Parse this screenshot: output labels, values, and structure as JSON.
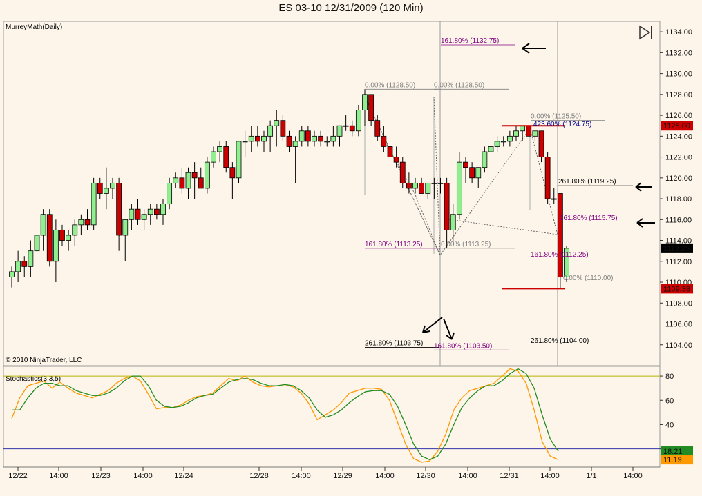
{
  "title": "ES 03-10  12/31/2009 (120 Min)",
  "price_panel": {
    "indicator_label": "MurreyMath(Daily)",
    "copyright": "© 2010 NinjaTrader, LLC",
    "badges": [
      {
        "text": "1125.00",
        "value": 1125.0,
        "bg": "#cc0000",
        "fg": "#ffffff"
      },
      {
        "text": "1113.25",
        "value": 1113.25,
        "bg": "#000000",
        "fg": "#ffffff"
      },
      {
        "text": "1109.38",
        "value": 1109.38,
        "bg": "#cc0000",
        "fg": "#ffffff"
      }
    ]
  },
  "stoch_panel": {
    "indicator_label": "Stochastics(3,3,5)",
    "badges": [
      {
        "text": "18.21",
        "value": 18.21,
        "bg": "#228b22",
        "fg": "#ffffff"
      },
      {
        "text": "11.19",
        "value": 11.19,
        "bg": "#ff9900",
        "fg": "#000000"
      }
    ]
  },
  "chart_data": {
    "type": "candlestick",
    "price_axis": {
      "min": 1102,
      "max": 1135,
      "ticks": [
        "1104.00",
        "1106.00",
        "1108.00",
        "1110.00",
        "1112.00",
        "1114.00",
        "1116.00",
        "1118.00",
        "1120.00",
        "1122.00",
        "1124.00",
        "1126.00",
        "1128.00",
        "1130.00",
        "1132.00",
        "1134.00"
      ]
    },
    "time_axis_labels": [
      "12/22",
      "14:00",
      "12/23",
      "14:00",
      "12/24",
      "12/28",
      "14:00",
      "12/29",
      "14:00",
      "12/30",
      "14:00",
      "12/31",
      "14:00",
      "1/1",
      "14:00"
    ],
    "candles": [
      {
        "o": 1110.5,
        "h": 1111.5,
        "l": 1109.5,
        "c": 1111.0
      },
      {
        "o": 1111.0,
        "h": 1113.0,
        "l": 1110.0,
        "c": 1112.0
      },
      {
        "o": 1112.0,
        "h": 1112.5,
        "l": 1110.5,
        "c": 1111.5
      },
      {
        "o": 1111.5,
        "h": 1114.0,
        "l": 1110.5,
        "c": 1113.0
      },
      {
        "o": 1113.0,
        "h": 1115.0,
        "l": 1112.5,
        "c": 1114.5
      },
      {
        "o": 1114.5,
        "h": 1117.0,
        "l": 1113.0,
        "c": 1116.5
      },
      {
        "o": 1116.5,
        "h": 1117.0,
        "l": 1111.5,
        "c": 1112.0
      },
      {
        "o": 1112.0,
        "h": 1116.0,
        "l": 1110.0,
        "c": 1115.0
      },
      {
        "o": 1115.0,
        "h": 1115.5,
        "l": 1113.5,
        "c": 1114.0
      },
      {
        "o": 1114.0,
        "h": 1115.0,
        "l": 1113.0,
        "c": 1114.5
      },
      {
        "o": 1114.5,
        "h": 1116.0,
        "l": 1113.5,
        "c": 1115.5
      },
      {
        "o": 1115.5,
        "h": 1116.5,
        "l": 1114.5,
        "c": 1116.0
      },
      {
        "o": 1116.0,
        "h": 1117.0,
        "l": 1115.0,
        "c": 1115.5
      },
      {
        "o": 1115.5,
        "h": 1120.0,
        "l": 1115.0,
        "c": 1119.5
      },
      {
        "o": 1119.5,
        "h": 1120.0,
        "l": 1118.0,
        "c": 1118.5
      },
      {
        "o": 1118.5,
        "h": 1121.0,
        "l": 1117.0,
        "c": 1119.0
      },
      {
        "o": 1119.0,
        "h": 1120.0,
        "l": 1118.0,
        "c": 1119.5
      },
      {
        "o": 1119.5,
        "h": 1120.0,
        "l": 1113.0,
        "c": 1114.5
      },
      {
        "o": 1114.5,
        "h": 1116.0,
        "l": 1112.0,
        "c": 1116.0
      },
      {
        "o": 1116.0,
        "h": 1117.5,
        "l": 1115.0,
        "c": 1117.0
      },
      {
        "o": 1117.0,
        "h": 1118.0,
        "l": 1115.5,
        "c": 1116.0
      },
      {
        "o": 1116.0,
        "h": 1117.0,
        "l": 1115.0,
        "c": 1116.5
      },
      {
        "o": 1116.5,
        "h": 1117.5,
        "l": 1115.5,
        "c": 1117.0
      },
      {
        "o": 1117.0,
        "h": 1117.5,
        "l": 1116.0,
        "c": 1116.5
      },
      {
        "o": 1116.5,
        "h": 1118.0,
        "l": 1115.5,
        "c": 1117.5
      },
      {
        "o": 1117.5,
        "h": 1120.0,
        "l": 1117.0,
        "c": 1119.5
      },
      {
        "o": 1119.5,
        "h": 1120.5,
        "l": 1119.0,
        "c": 1120.0
      },
      {
        "o": 1120.0,
        "h": 1121.0,
        "l": 1118.5,
        "c": 1119.0
      },
      {
        "o": 1119.0,
        "h": 1121.0,
        "l": 1118.0,
        "c": 1120.5
      },
      {
        "o": 1120.5,
        "h": 1121.5,
        "l": 1118.0,
        "c": 1120.0
      },
      {
        "o": 1120.0,
        "h": 1121.0,
        "l": 1119.0,
        "c": 1119.0
      },
      {
        "o": 1119.0,
        "h": 1122.0,
        "l": 1118.5,
        "c": 1121.5
      },
      {
        "o": 1121.5,
        "h": 1123.0,
        "l": 1121.0,
        "c": 1122.5
      },
      {
        "o": 1122.5,
        "h": 1123.5,
        "l": 1121.5,
        "c": 1123.0
      },
      {
        "o": 1123.0,
        "h": 1123.5,
        "l": 1120.5,
        "c": 1121.0
      },
      {
        "o": 1121.0,
        "h": 1121.5,
        "l": 1118.0,
        "c": 1120.0
      },
      {
        "o": 1120.0,
        "h": 1123.5,
        "l": 1119.5,
        "c": 1123.5
      },
      {
        "o": 1123.5,
        "h": 1124.5,
        "l": 1122.0,
        "c": 1123.5
      },
      {
        "o": 1123.5,
        "h": 1125.0,
        "l": 1122.5,
        "c": 1124.0
      },
      {
        "o": 1124.0,
        "h": 1125.0,
        "l": 1123.0,
        "c": 1123.5
      },
      {
        "o": 1123.5,
        "h": 1124.5,
        "l": 1122.5,
        "c": 1124.0
      },
      {
        "o": 1124.0,
        "h": 1125.5,
        "l": 1122.5,
        "c": 1125.0
      },
      {
        "o": 1125.0,
        "h": 1126.5,
        "l": 1123.0,
        "c": 1125.5
      },
      {
        "o": 1125.5,
        "h": 1126.0,
        "l": 1123.5,
        "c": 1124.0
      },
      {
        "o": 1124.0,
        "h": 1124.5,
        "l": 1122.5,
        "c": 1123.0
      },
      {
        "o": 1123.0,
        "h": 1124.0,
        "l": 1119.5,
        "c": 1123.5
      },
      {
        "o": 1123.5,
        "h": 1125.0,
        "l": 1123.0,
        "c": 1124.5
      },
      {
        "o": 1124.5,
        "h": 1125.0,
        "l": 1123.0,
        "c": 1123.5
      },
      {
        "o": 1123.5,
        "h": 1124.5,
        "l": 1123.0,
        "c": 1124.0
      },
      {
        "o": 1124.0,
        "h": 1124.5,
        "l": 1123.0,
        "c": 1123.5
      },
      {
        "o": 1123.5,
        "h": 1124.0,
        "l": 1123.0,
        "c": 1123.5
      },
      {
        "o": 1123.5,
        "h": 1125.0,
        "l": 1123.0,
        "c": 1124.0
      },
      {
        "o": 1124.0,
        "h": 1125.0,
        "l": 1123.0,
        "c": 1125.0
      },
      {
        "o": 1125.0,
        "h": 1126.0,
        "l": 1124.5,
        "c": 1125.0
      },
      {
        "o": 1125.0,
        "h": 1125.5,
        "l": 1124.0,
        "c": 1124.5
      },
      {
        "o": 1124.5,
        "h": 1127.0,
        "l": 1124.0,
        "c": 1126.5
      },
      {
        "o": 1126.5,
        "h": 1128.5,
        "l": 1125.0,
        "c": 1128.0
      },
      {
        "o": 1128.0,
        "h": 1128.0,
        "l": 1125.0,
        "c": 1125.5
      },
      {
        "o": 1125.5,
        "h": 1126.0,
        "l": 1123.5,
        "c": 1124.0
      },
      {
        "o": 1124.0,
        "h": 1125.0,
        "l": 1122.5,
        "c": 1123.0
      },
      {
        "o": 1123.0,
        "h": 1124.5,
        "l": 1121.5,
        "c": 1122.0
      },
      {
        "o": 1122.0,
        "h": 1123.0,
        "l": 1121.0,
        "c": 1121.5
      },
      {
        "o": 1121.5,
        "h": 1122.0,
        "l": 1119.0,
        "c": 1119.5
      },
      {
        "o": 1119.5,
        "h": 1120.5,
        "l": 1118.5,
        "c": 1119.0
      },
      {
        "o": 1119.0,
        "h": 1120.0,
        "l": 1118.5,
        "c": 1119.5
      },
      {
        "o": 1119.5,
        "h": 1120.0,
        "l": 1118.5,
        "c": 1118.5
      },
      {
        "o": 1118.5,
        "h": 1119.5,
        "l": 1118.0,
        "c": 1119.5
      },
      {
        "o": 1119.5,
        "h": 1120.0,
        "l": 1118.0,
        "c": 1119.5
      },
      {
        "o": 1119.5,
        "h": 1120.0,
        "l": 1118.5,
        "c": 1119.5
      },
      {
        "o": 1119.5,
        "h": 1120.0,
        "l": 1113.25,
        "c": 1115.0
      },
      {
        "o": 1115.0,
        "h": 1117.5,
        "l": 1113.5,
        "c": 1116.5
      },
      {
        "o": 1116.5,
        "h": 1122.5,
        "l": 1116.0,
        "c": 1121.5
      },
      {
        "o": 1121.5,
        "h": 1122.0,
        "l": 1119.5,
        "c": 1121.0
      },
      {
        "o": 1121.0,
        "h": 1121.5,
        "l": 1119.5,
        "c": 1120.0
      },
      {
        "o": 1120.0,
        "h": 1121.0,
        "l": 1119.0,
        "c": 1121.0
      },
      {
        "o": 1121.0,
        "h": 1123.0,
        "l": 1120.5,
        "c": 1122.5
      },
      {
        "o": 1122.5,
        "h": 1123.5,
        "l": 1122.0,
        "c": 1123.0
      },
      {
        "o": 1123.0,
        "h": 1124.0,
        "l": 1122.5,
        "c": 1123.5
      },
      {
        "o": 1123.5,
        "h": 1124.0,
        "l": 1123.0,
        "c": 1123.5
      },
      {
        "o": 1123.5,
        "h": 1124.5,
        "l": 1123.0,
        "c": 1124.0
      },
      {
        "o": 1124.0,
        "h": 1125.0,
        "l": 1123.5,
        "c": 1124.5
      },
      {
        "o": 1124.5,
        "h": 1125.0,
        "l": 1123.5,
        "c": 1125.0
      },
      {
        "o": 1125.0,
        "h": 1125.0,
        "l": 1124.0,
        "c": 1124.0
      },
      {
        "o": 1124.0,
        "h": 1124.5,
        "l": 1123.5,
        "c": 1124.5
      },
      {
        "o": 1124.5,
        "h": 1124.5,
        "l": 1121.5,
        "c": 1122.0
      },
      {
        "o": 1122.0,
        "h": 1122.5,
        "l": 1117.5,
        "c": 1118.0
      },
      {
        "o": 1118.0,
        "h": 1119.0,
        "l": 1117.5,
        "c": 1118.0
      },
      {
        "o": 1118.5,
        "h": 1118.5,
        "l": 1109.38,
        "c": 1110.5
      },
      {
        "o": 1110.5,
        "h": 1113.5,
        "l": 1110.0,
        "c": 1113.25
      }
    ],
    "horizontal_levels": [
      {
        "value": 1125.0,
        "color": "#cc0000"
      },
      {
        "value": 1109.38,
        "color": "#cc0000"
      }
    ],
    "annotations": [
      {
        "text": "161.80% (1132.75)",
        "value": 1132.75,
        "color": "#800080"
      },
      {
        "text": "0.00% (1128.50)",
        "value": 1128.5,
        "color": "#808080"
      },
      {
        "text": "0.00% (1128.50)",
        "value": 1128.5,
        "color": "#808080"
      },
      {
        "text": "0.00% (1125.50)",
        "value": 1125.5,
        "color": "#808080"
      },
      {
        "text": "423.60% (1124.75)",
        "value": 1124.75,
        "color": "#00008b"
      },
      {
        "text": "261.80% (1119.25)",
        "value": 1119.25,
        "color": "#000000"
      },
      {
        "text": "161.80% (1115.75)",
        "value": 1115.75,
        "color": "#800080"
      },
      {
        "text": "161.80% (1113.25)",
        "value": 1113.25,
        "color": "#800080"
      },
      {
        "text": "0.00% (1113.25)",
        "value": 1113.25,
        "color": "#808080"
      },
      {
        "text": "161.80% (1112.25)",
        "value": 1112.25,
        "color": "#800080"
      },
      {
        "text": "0.00% (1110.00)",
        "value": 1110.0,
        "color": "#808080"
      },
      {
        "text": "261.80% (1103.75)",
        "value": 1103.75,
        "color": "#000000"
      },
      {
        "text": "161.80% (1103.50)",
        "value": 1103.5,
        "color": "#800080"
      },
      {
        "text": "261.80% (1104.00)",
        "value": 1104.0,
        "color": "#000000"
      }
    ],
    "stochastics": {
      "axis": {
        "min": 5,
        "max": 88,
        "ticks": [
          "20",
          "40",
          "60",
          "80"
        ]
      },
      "upper_line": 80,
      "lower_line": 20,
      "series": [
        {
          "color": "#ff9900",
          "values": [
            45,
            62,
            72,
            74,
            76,
            70,
            75,
            70,
            66,
            64,
            62,
            65,
            68,
            74,
            78,
            80,
            76,
            65,
            53,
            54,
            54,
            56,
            60,
            63,
            64,
            66,
            72,
            78,
            76,
            80,
            75,
            72,
            71,
            72,
            73,
            71,
            66,
            57,
            44,
            48,
            52,
            58,
            66,
            68,
            70,
            70,
            69,
            60,
            42,
            24,
            12,
            9,
            10,
            18,
            32,
            52,
            62,
            68,
            70,
            72,
            74,
            80,
            86,
            84,
            74,
            52,
            26,
            14,
            11
          ]
        },
        {
          "color": "#228b22",
          "values": [
            52,
            52,
            62,
            70,
            74,
            74,
            72,
            72,
            68,
            66,
            64,
            64,
            66,
            70,
            76,
            80,
            80,
            72,
            60,
            55,
            54,
            55,
            58,
            62,
            64,
            65,
            70,
            75,
            77,
            78,
            77,
            74,
            72,
            72,
            73,
            72,
            68,
            62,
            52,
            46,
            48,
            52,
            58,
            63,
            67,
            68,
            68,
            65,
            55,
            40,
            24,
            14,
            11,
            14,
            24,
            40,
            54,
            62,
            68,
            72,
            72,
            76,
            82,
            86,
            82,
            70,
            48,
            28,
            18
          ]
        }
      ]
    }
  }
}
